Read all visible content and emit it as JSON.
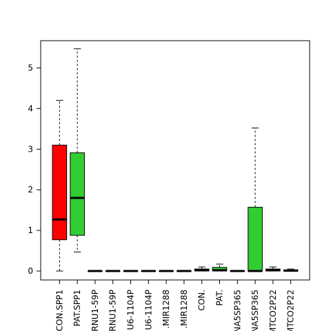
{
  "chart_data": {
    "type": "boxplot",
    "title": "",
    "xlabel": "",
    "ylabel": "",
    "ylim": [
      -0.22,
      5.67
    ],
    "yticks": [
      0,
      1,
      2,
      3,
      4,
      5
    ],
    "ytick_labels": [
      "0",
      "1",
      "2",
      "3",
      "4",
      "5"
    ],
    "grid": false,
    "legend": "none",
    "categories": [
      "CON.SPP1",
      "PAT.SPP1",
      "RNU1-59P",
      "RNU1-59P",
      "U6-1104P",
      "U6-1104P",
      ".MIR1288",
      ".MIR1288",
      "CON.",
      "PAT.",
      "NA5SP365",
      "NA5SP365",
      "MTCO2P22",
      "MTCO2P22"
    ],
    "colors": [
      "#ff0000",
      "#32cd32",
      "#ff0000",
      "#32cd32",
      "#ff0000",
      "#32cd32",
      "#ff0000",
      "#32cd32",
      "#ff0000",
      "#32cd32",
      "#ff0000",
      "#32cd32",
      "#ff0000",
      "#32cd32"
    ],
    "boxes": [
      {
        "min": 0.0,
        "q1": 0.77,
        "median": 1.27,
        "q3": 3.1,
        "max": 4.2
      },
      {
        "min": 0.47,
        "q1": 0.88,
        "median": 1.8,
        "q3": 2.91,
        "max": 5.47
      },
      {
        "min": 0.0,
        "q1": 0.0,
        "median": 0.0,
        "q3": 0.0,
        "max": 0.0
      },
      {
        "min": 0.0,
        "q1": 0.0,
        "median": 0.0,
        "q3": 0.0,
        "max": 0.0
      },
      {
        "min": 0.0,
        "q1": 0.0,
        "median": 0.0,
        "q3": 0.0,
        "max": 0.0
      },
      {
        "min": 0.0,
        "q1": 0.0,
        "median": 0.0,
        "q3": 0.0,
        "max": 0.0
      },
      {
        "min": 0.0,
        "q1": 0.0,
        "median": 0.0,
        "q3": 0.0,
        "max": 0.0
      },
      {
        "min": 0.0,
        "q1": 0.0,
        "median": 0.0,
        "q3": 0.0,
        "max": 0.0
      },
      {
        "min": 0.0,
        "q1": 0.0,
        "median": 0.02,
        "q3": 0.05,
        "max": 0.1
      },
      {
        "min": 0.0,
        "q1": 0.0,
        "median": 0.02,
        "q3": 0.09,
        "max": 0.17
      },
      {
        "min": 0.0,
        "q1": 0.0,
        "median": 0.0,
        "q3": 0.0,
        "max": 0.0
      },
      {
        "min": 0.0,
        "q1": 0.0,
        "median": 0.0,
        "q3": 1.57,
        "max": 3.52
      },
      {
        "min": 0.0,
        "q1": 0.0,
        "median": 0.02,
        "q3": 0.05,
        "max": 0.1
      },
      {
        "min": 0.0,
        "q1": 0.0,
        "median": 0.01,
        "q3": 0.03,
        "max": 0.05
      }
    ]
  }
}
